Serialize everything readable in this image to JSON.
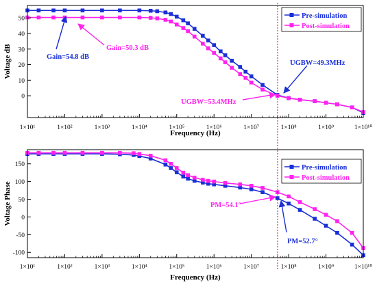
{
  "colors": {
    "pre": "#1a2fd6",
    "post": "#ff22ee",
    "marker_line": "#cc1111",
    "axis": "#000000"
  },
  "chart_data": [
    {
      "type": "line",
      "xscale": "log",
      "xlabel": "Frequency (Hz)",
      "ylabel": "Voltage dB",
      "xlim": [
        10,
        10000000000
      ],
      "ylim": [
        -14,
        58
      ],
      "yticks": [
        0,
        10,
        20,
        30,
        40,
        50
      ],
      "x_tick_labels": [
        "1×10¹",
        "1×10²",
        "1×10³",
        "1×10⁴",
        "1×10⁵",
        "1×10⁶",
        "1×10⁷",
        "1×10⁸",
        "1×10⁹",
        "1×10¹⁰"
      ],
      "legend_position": "top-right",
      "series": [
        {
          "name": "Pre-simulation",
          "color": "pre",
          "marker": "square",
          "x": [
            10,
            20,
            50,
            100,
            300,
            1000,
            3000,
            10000,
            20000,
            30000,
            50000,
            70000,
            100000,
            150000,
            200000,
            300000,
            500000,
            700000,
            1000000,
            1500000,
            2000000,
            3000000,
            5000000,
            7000000,
            10000000,
            20000000,
            50000000,
            100000000,
            200000000,
            500000000,
            1000000000,
            2000000000,
            5000000000,
            10000000000
          ],
          "y": [
            54.8,
            54.8,
            54.8,
            54.8,
            54.8,
            54.8,
            54.8,
            54.8,
            54.6,
            54.3,
            53.5,
            52.5,
            50.8,
            48.5,
            46.5,
            43,
            38.5,
            35.5,
            32.5,
            28.5,
            26,
            22.5,
            18.5,
            15.5,
            12.5,
            7,
            0.5,
            -1.5,
            -2.5,
            -3.5,
            -4.5,
            -5.5,
            -7.5,
            -11
          ]
        },
        {
          "name": "Post-simulation",
          "color": "post",
          "marker": "square",
          "x": [
            10,
            20,
            50,
            100,
            300,
            1000,
            3000,
            10000,
            20000,
            30000,
            50000,
            70000,
            100000,
            150000,
            200000,
            300000,
            500000,
            700000,
            1000000,
            1500000,
            2000000,
            3000000,
            5000000,
            7000000,
            10000000,
            20000000,
            50000000,
            100000000,
            200000000,
            500000000,
            1000000000,
            2000000000,
            5000000000,
            10000000000
          ],
          "y": [
            50.3,
            50.3,
            50.3,
            50.3,
            50.3,
            50.3,
            50.3,
            50.3,
            50.1,
            49.7,
            48.8,
            47.7,
            45.8,
            43.5,
            41.5,
            38,
            33.5,
            30.5,
            27.5,
            24,
            21.5,
            18,
            14,
            11.5,
            8.5,
            4,
            0,
            -1.5,
            -2.5,
            -3.5,
            -4.5,
            -5.5,
            -7.5,
            -10.5
          ]
        }
      ],
      "annotations": [
        {
          "text": "Gain=54.8 dB",
          "color": "pre"
        },
        {
          "text": "Gain=50.3 dB",
          "color": "post"
        },
        {
          "text": "UGBW=49.3MHz",
          "color": "pre"
        },
        {
          "text": "UGBW=53.4MHz",
          "color": "post"
        }
      ]
    },
    {
      "type": "line",
      "xscale": "log",
      "xlabel": "Frequency (Hz)",
      "ylabel": "Voltage Phase",
      "xlim": [
        10,
        10000000000
      ],
      "ylim": [
        -115,
        190
      ],
      "yticks": [
        -100,
        -50,
        0,
        50,
        100,
        150
      ],
      "x_tick_labels": [
        "1×10¹",
        "1×10²",
        "1×10³",
        "1×10⁴",
        "1×10⁵",
        "1×10⁶",
        "1×10⁷",
        "1×10⁸",
        "1×10⁹",
        "1×10¹⁰"
      ],
      "legend_position": "top-right",
      "series": [
        {
          "name": "Pre-simulation",
          "color": "pre",
          "marker": "square",
          "x": [
            10,
            20,
            50,
            100,
            300,
            1000,
            3000,
            7000,
            10000,
            20000,
            50000,
            70000,
            100000,
            150000,
            200000,
            300000,
            500000,
            700000,
            1000000,
            2000000,
            5000000,
            10000000,
            20000000,
            50000000,
            100000000,
            200000000,
            500000000,
            1000000000,
            2000000000,
            5000000000,
            10000000000
          ],
          "y": [
            178,
            178,
            178,
            178,
            178,
            178,
            177,
            175,
            172,
            165,
            148,
            138,
            126,
            114,
            108,
            102,
            97,
            94,
            92,
            88,
            83,
            78,
            70,
            53,
            38,
            20,
            -5,
            -25,
            -45,
            -78,
            -108
          ]
        },
        {
          "name": "Post-simulation",
          "color": "post",
          "marker": "square",
          "x": [
            10,
            20,
            50,
            100,
            300,
            1000,
            3000,
            7000,
            10000,
            20000,
            50000,
            70000,
            100000,
            150000,
            200000,
            300000,
            500000,
            700000,
            1000000,
            2000000,
            5000000,
            10000000,
            20000000,
            50000000,
            100000000,
            200000000,
            500000000,
            1000000000,
            2000000000,
            5000000000,
            10000000000
          ],
          "y": [
            181,
            181,
            181,
            181,
            181,
            181,
            181,
            180,
            178,
            173,
            160,
            150,
            138,
            125,
            118,
            111,
            105,
            102,
            100,
            96,
            92,
            88,
            82,
            70,
            58,
            42,
            22,
            6,
            -12,
            -45,
            -88
          ]
        }
      ],
      "annotations": [
        {
          "text": "PM=54.1°",
          "color": "post"
        },
        {
          "text": "PM=52.7°",
          "color": "pre"
        }
      ]
    }
  ]
}
